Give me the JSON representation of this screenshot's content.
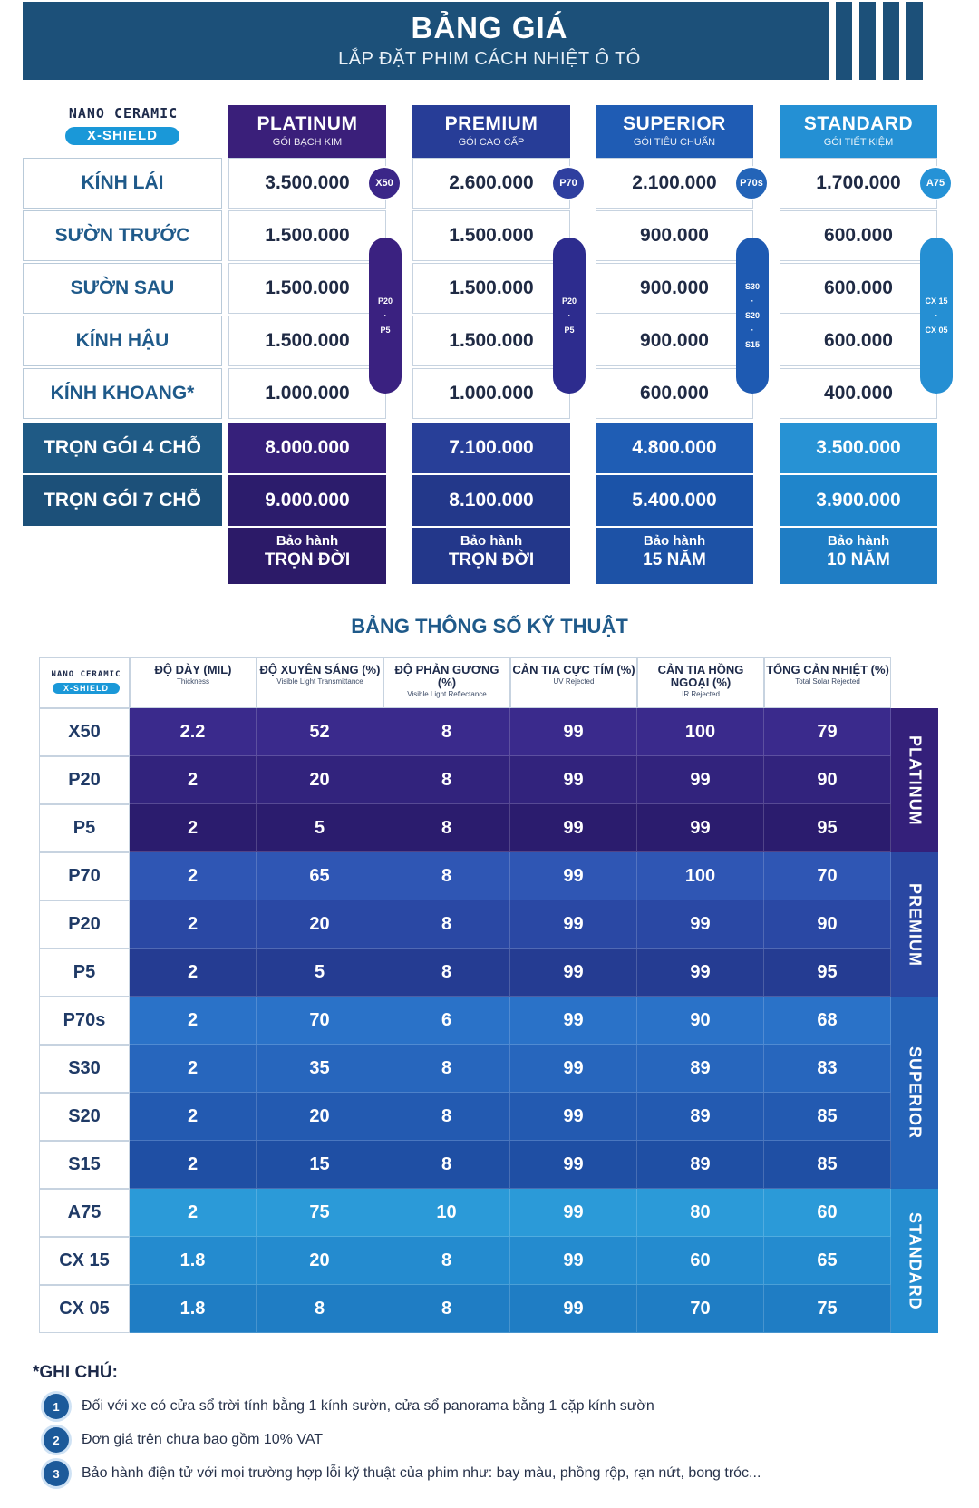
{
  "header": {
    "title": "BẢNG GIÁ",
    "subtitle": "LẮP ĐẶT PHIM CÁCH NHIỆT Ô TÔ"
  },
  "logo": {
    "top": "NANO CERAMIC",
    "bottom": "X-SHIELD"
  },
  "price_table": {
    "tiers": [
      {
        "name": "PLATINUM",
        "sub": "GÓI BẠCH KIM",
        "color": "#3a1f7a"
      },
      {
        "name": "PREMIUM",
        "sub": "GÓI CAO CẤP",
        "color": "#273d97"
      },
      {
        "name": "SUPERIOR",
        "sub": "GÓI TIÊU CHUẨN",
        "color": "#1f5cb4"
      },
      {
        "name": "STANDARD",
        "sub": "GÓI TIẾT KIỆM",
        "color": "#2490d4"
      }
    ],
    "rows": [
      {
        "label": "KÍNH LÁI",
        "prices": [
          "3.500.000",
          "2.600.000",
          "2.100.000",
          "1.700.000"
        ]
      },
      {
        "label": "SƯỜN TRƯỚC",
        "prices": [
          "1.500.000",
          "1.500.000",
          "900.000",
          "600.000"
        ]
      },
      {
        "label": "SƯỜN SAU",
        "prices": [
          "1.500.000",
          "1.500.000",
          "900.000",
          "600.000"
        ]
      },
      {
        "label": "KÍNH HẬU",
        "prices": [
          "1.500.000",
          "1.500.000",
          "900.000",
          "600.000"
        ]
      },
      {
        "label": "KÍNH KHOANG*",
        "prices": [
          "1.000.000",
          "1.000.000",
          "600.000",
          "400.000"
        ]
      }
    ],
    "packages": [
      {
        "label": "TRỌN GÓI 4 CHỖ",
        "prices": [
          "8.000.000",
          "7.100.000",
          "4.800.000",
          "3.500.000"
        ]
      },
      {
        "label": "TRỌN GÓI 7 CHỖ",
        "prices": [
          "9.000.000",
          "8.100.000",
          "5.400.000",
          "3.900.000"
        ]
      }
    ],
    "warranty": [
      {
        "line1": "Bảo hành",
        "line2": "TRỌN ĐỜI"
      },
      {
        "line1": "Bảo hành",
        "line2": "TRỌN ĐỜI"
      },
      {
        "line1": "Bảo hành",
        "line2": "15 NĂM"
      },
      {
        "line1": "Bảo hành",
        "line2": "10 NĂM"
      }
    ],
    "badges": [
      "X50",
      "P70",
      "P70s",
      "A75"
    ],
    "side_pills": [
      {
        "lines": [
          "P20",
          "·",
          "P5"
        ]
      },
      {
        "lines": [
          "P20",
          "·",
          "P5"
        ]
      },
      {
        "lines": [
          "S30",
          "·",
          "S20",
          "·",
          "S15"
        ]
      },
      {
        "lines": [
          "CX 15",
          "·",
          "CX 05"
        ]
      }
    ]
  },
  "spec_table": {
    "title": "BẢNG THÔNG SỐ KỸ THUẬT",
    "columns": [
      {
        "vi": "ĐỘ DÀY (MIL)",
        "en": "Thickness"
      },
      {
        "vi": "ĐỘ XUYÊN SÁNG (%)",
        "en": "Visible Light Transmittance"
      },
      {
        "vi": "ĐỘ PHẢN GƯƠNG (%)",
        "en": "Visible Light Reflectance"
      },
      {
        "vi": "CẢN TIA CỰC TÍM (%)",
        "en": "UV Rejected"
      },
      {
        "vi": "CẢN TIA HỒNG NGOẠI (%)",
        "en": "IR Rejected"
      },
      {
        "vi": "TỔNG CẢN NHIỆT (%)",
        "en": "Total Solar Rejected"
      }
    ],
    "groups": [
      {
        "name": "PLATINUM",
        "colors": [
          "#3a2a8c",
          "#32237d",
          "#2b1c6e"
        ],
        "side_color": "#34207a",
        "rows": [
          {
            "code": "X50",
            "values": [
              "2.2",
              "52",
              "8",
              "99",
              "100",
              "79"
            ]
          },
          {
            "code": "P20",
            "values": [
              "2",
              "20",
              "8",
              "99",
              "99",
              "90"
            ]
          },
          {
            "code": "P5",
            "values": [
              "2",
              "5",
              "8",
              "99",
              "99",
              "95"
            ]
          }
        ]
      },
      {
        "name": "PREMIUM",
        "colors": [
          "#2f56b4",
          "#2a48a4",
          "#253c92"
        ],
        "side_color": "#2a47a2",
        "rows": [
          {
            "code": "P70",
            "values": [
              "2",
              "65",
              "8",
              "99",
              "100",
              "70"
            ]
          },
          {
            "code": "P20",
            "values": [
              "2",
              "20",
              "8",
              "99",
              "99",
              "90"
            ]
          },
          {
            "code": "P5",
            "values": [
              "2",
              "5",
              "8",
              "99",
              "99",
              "95"
            ]
          }
        ]
      },
      {
        "name": "SUPERIOR",
        "colors": [
          "#2a72c8",
          "#2766bd",
          "#235ab1",
          "#1f4fa4"
        ],
        "side_color": "#2563b8",
        "rows": [
          {
            "code": "P70s",
            "values": [
              "2",
              "70",
              "6",
              "99",
              "90",
              "68"
            ]
          },
          {
            "code": "S30",
            "values": [
              "2",
              "35",
              "8",
              "99",
              "89",
              "83"
            ]
          },
          {
            "code": "S20",
            "values": [
              "2",
              "20",
              "8",
              "99",
              "89",
              "85"
            ]
          },
          {
            "code": "S15",
            "values": [
              "2",
              "15",
              "8",
              "99",
              "89",
              "85"
            ]
          }
        ]
      },
      {
        "name": "STANDARD",
        "colors": [
          "#2b9ad8",
          "#248bcf",
          "#1f7dc4"
        ],
        "side_color": "#258dd0",
        "rows": [
          {
            "code": "A75",
            "values": [
              "2",
              "75",
              "10",
              "99",
              "80",
              "60"
            ]
          },
          {
            "code": "CX 15",
            "values": [
              "1.8",
              "20",
              "8",
              "99",
              "60",
              "65"
            ]
          },
          {
            "code": "CX 05",
            "values": [
              "1.8",
              "8",
              "8",
              "99",
              "70",
              "75"
            ]
          }
        ]
      }
    ]
  },
  "notes": {
    "title": "*GHI CHÚ:",
    "items": [
      {
        "num": "1",
        "text": "Đối với xe có cửa sổ trời tính bằng 1 kính sườn, cửa sổ panorama bằng 1 cặp kính sườn"
      },
      {
        "num": "2",
        "text": "Đơn giá trên chưa bao gồm 10% VAT"
      },
      {
        "num": "3",
        "text": "Bảo hành điện tử với mọi trường hợp lỗi kỹ thuật của phim như: bay màu, phồng rộp, rạn nứt, bong tróc..."
      }
    ]
  }
}
